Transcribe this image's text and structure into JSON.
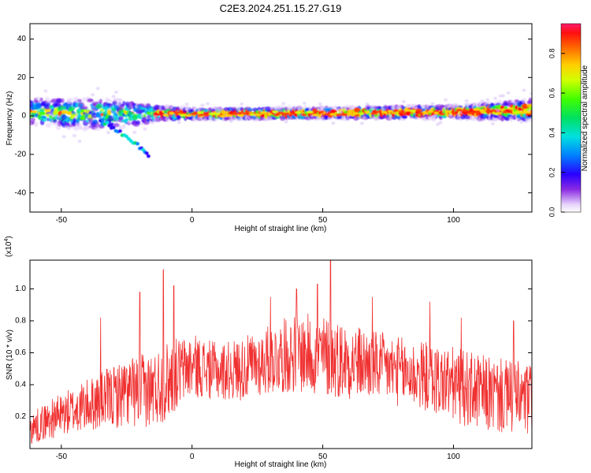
{
  "figure_title": "C2E3.2024.251.15.27.G19",
  "chart_data": [
    {
      "type": "heatmap",
      "title": "C2E3.2024.251.15.27.G19",
      "xlabel": "Height of straight line (km)",
      "ylabel": "Frequency (Hz)",
      "xlim": [
        -62,
        130
      ],
      "ylim": [
        -50,
        48
      ],
      "x_ticks": [
        -50,
        0,
        50,
        100
      ],
      "y_ticks": [
        -40,
        -20,
        0,
        20,
        40
      ],
      "x_tick_labels": [
        "-50",
        "0",
        "50",
        "100"
      ],
      "y_tick_labels": [
        "-40",
        "-20",
        "0",
        "20",
        "40"
      ],
      "grid": false,
      "band": {
        "description_values": "main spectral band centered near 0-2 Hz with width about 5-8 Hz",
        "center_hz": [
          [
            -62,
            2
          ],
          [
            -40,
            1
          ],
          [
            -20,
            1
          ],
          [
            -10,
            1.5
          ],
          [
            0,
            1
          ],
          [
            50,
            1.5
          ],
          [
            100,
            2
          ],
          [
            130,
            3
          ]
        ],
        "half_width_hz": [
          [
            -62,
            6
          ],
          [
            -40,
            7
          ],
          [
            -25,
            6
          ],
          [
            -12,
            3
          ],
          [
            0,
            2.5
          ],
          [
            50,
            2.5
          ],
          [
            100,
            3
          ],
          [
            130,
            5
          ]
        ]
      },
      "secondary_branch": {
        "points": [
          [
            -35,
            -2
          ],
          [
            -30,
            -6
          ],
          [
            -25,
            -11
          ],
          [
            -20,
            -16
          ],
          [
            -16,
            -21
          ]
        ]
      },
      "colorbar": {
        "label": "Normalized spectral amplitude",
        "range": [
          0.0,
          0.95
        ],
        "ticks": [
          0.0,
          0.2,
          0.4,
          0.6,
          0.8
        ],
        "tick_labels": [
          "0.0",
          "0.2",
          "0.4",
          "0.6",
          "0.8"
        ],
        "colormap": "rainbow"
      }
    },
    {
      "type": "line",
      "xlabel": "Height of straight line (km)",
      "ylabel": "SNR (10 * v/v)",
      "scale_label": "(x10",
      "scale_exponent": "4",
      "scale_close": ")",
      "xlim": [
        -62,
        130
      ],
      "ylim": [
        0.0,
        1.18
      ],
      "x_ticks": [
        -50,
        0,
        50,
        100
      ],
      "y_ticks": [
        0.2,
        0.4,
        0.6,
        0.8,
        1.0
      ],
      "x_tick_labels": [
        "-50",
        "0",
        "50",
        "100"
      ],
      "y_tick_labels": [
        "0.2",
        "0.4",
        "0.6",
        "0.8",
        "1.0"
      ],
      "series": [
        {
          "color": "#f03030",
          "envelope_x": [
            -62,
            -55,
            -45,
            -35,
            -25,
            -15,
            -10,
            -5,
            0,
            10,
            20,
            30,
            40,
            50,
            60,
            70,
            80,
            90,
            100,
            110,
            120,
            130
          ],
          "envelope_mean": [
            0.12,
            0.18,
            0.24,
            0.3,
            0.35,
            0.37,
            0.42,
            0.48,
            0.52,
            0.48,
            0.5,
            0.56,
            0.6,
            0.58,
            0.55,
            0.52,
            0.48,
            0.45,
            0.4,
            0.35,
            0.32,
            0.3
          ],
          "envelope_spread": [
            0.1,
            0.12,
            0.15,
            0.18,
            0.22,
            0.24,
            0.25,
            0.22,
            0.2,
            0.18,
            0.2,
            0.22,
            0.25,
            0.26,
            0.24,
            0.22,
            0.22,
            0.22,
            0.24,
            0.24,
            0.24,
            0.24
          ],
          "peaks": [
            [
              -35,
              0.82
            ],
            [
              -20,
              0.98
            ],
            [
              -11,
              1.12
            ],
            [
              -7,
              1.02
            ],
            [
              30,
              0.95
            ],
            [
              40,
              1.0
            ],
            [
              48,
              1.03
            ],
            [
              53,
              1.18
            ],
            [
              69,
              0.95
            ],
            [
              91,
              0.92
            ],
            [
              103,
              0.82
            ],
            [
              123,
              0.8
            ]
          ]
        }
      ]
    }
  ]
}
